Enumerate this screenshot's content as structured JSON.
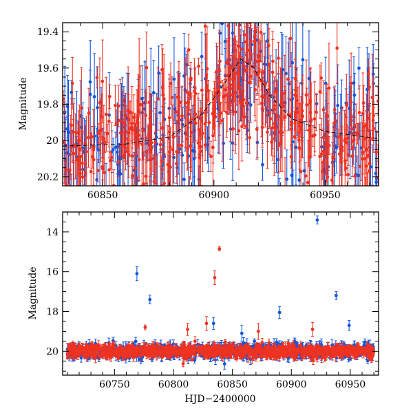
{
  "chart_data": [
    {
      "id": "top",
      "type": "scatter",
      "title": "",
      "xlabel": "",
      "ylabel": "Magnitude",
      "xlim": [
        60832,
        60974
      ],
      "ylim": [
        20.25,
        19.35
      ],
      "y_inverted": true,
      "xticks": [
        60850,
        60900,
        60950
      ],
      "yticks": [
        19.4,
        19.6,
        19.8,
        20,
        20.2
      ],
      "ytick_labels": [
        "19.4",
        "19.6",
        "19.8",
        "20",
        "20.2"
      ],
      "grid": false,
      "series": [
        {
          "name": "blue-band",
          "color": "#1155dd",
          "seed": 7,
          "x_range": [
            60832,
            60974
          ],
          "n": 260,
          "base": 20.0,
          "scatter": 0.22,
          "err": [
            0.05,
            0.3
          ]
        },
        {
          "name": "red-band",
          "color": "#ee3322",
          "seed": 13,
          "x_range": [
            60832,
            60974
          ],
          "n": 460,
          "base": 20.0,
          "scatter": 0.18,
          "err": [
            0.04,
            0.25
          ]
        }
      ],
      "model_curve": {
        "color": "#000000",
        "style": "dashed",
        "x": [
          60832,
          60860,
          60880,
          60895,
          60905,
          60912,
          60918,
          60925,
          60935,
          60950,
          60974
        ],
        "y": [
          20.03,
          20.02,
          19.98,
          19.85,
          19.68,
          19.55,
          19.6,
          19.75,
          19.88,
          19.95,
          19.99
        ]
      }
    },
    {
      "id": "bottom",
      "type": "scatter",
      "title": "",
      "xlabel": "HJD−2400000",
      "ylabel": "Magnitude",
      "xlim": [
        60706,
        60974
      ],
      "ylim": [
        21.2,
        13.0
      ],
      "y_inverted": true,
      "xticks": [
        60750,
        60800,
        60850,
        60900,
        60950
      ],
      "yticks": [
        14,
        16,
        18,
        20
      ],
      "ytick_labels": [
        "14",
        "16",
        "18",
        "20"
      ],
      "grid": false,
      "series": [
        {
          "name": "blue-band",
          "color": "#1155dd",
          "seed": 21,
          "x_range": [
            60710,
            60970
          ],
          "n": 700,
          "base": 20.0,
          "scatter": 0.18,
          "err": [
            0.05,
            0.3
          ]
        },
        {
          "name": "red-band",
          "color": "#ee3322",
          "seed": 33,
          "x_range": [
            60710,
            60970
          ],
          "n": 1100,
          "base": 20.0,
          "scatter": 0.15,
          "err": [
            0.04,
            0.25
          ]
        }
      ],
      "outliers": [
        {
          "x": 60769,
          "y": 16.1,
          "err": 0.35,
          "color": "#1155dd"
        },
        {
          "x": 60780,
          "y": 17.4,
          "err": 0.22,
          "color": "#1155dd"
        },
        {
          "x": 60776,
          "y": 18.8,
          "err": 0.12,
          "color": "#ee3322"
        },
        {
          "x": 60768,
          "y": 19.5,
          "err": 0.2,
          "color": "#1155dd"
        },
        {
          "x": 60812,
          "y": 18.9,
          "err": 0.3,
          "color": "#ee3322"
        },
        {
          "x": 60828,
          "y": 18.6,
          "err": 0.35,
          "color": "#ee3322"
        },
        {
          "x": 60835,
          "y": 16.3,
          "err": 0.35,
          "color": "#ee3322"
        },
        {
          "x": 60839,
          "y": 14.85,
          "err": 0.1,
          "color": "#ee3322"
        },
        {
          "x": 60834,
          "y": 18.6,
          "err": 0.3,
          "color": "#1155dd"
        },
        {
          "x": 60872,
          "y": 19.0,
          "err": 0.4,
          "color": "#ee3322"
        },
        {
          "x": 60890,
          "y": 18.05,
          "err": 0.3,
          "color": "#1155dd"
        },
        {
          "x": 60922,
          "y": 13.4,
          "err": 0.2,
          "color": "#1155dd"
        },
        {
          "x": 60938,
          "y": 17.2,
          "err": 0.2,
          "color": "#1155dd"
        },
        {
          "x": 60949,
          "y": 18.7,
          "err": 0.25,
          "color": "#1155dd"
        },
        {
          "x": 60918,
          "y": 18.9,
          "err": 0.35,
          "color": "#ee3322"
        },
        {
          "x": 60858,
          "y": 19.1,
          "err": 0.4,
          "color": "#1155dd"
        }
      ]
    }
  ]
}
